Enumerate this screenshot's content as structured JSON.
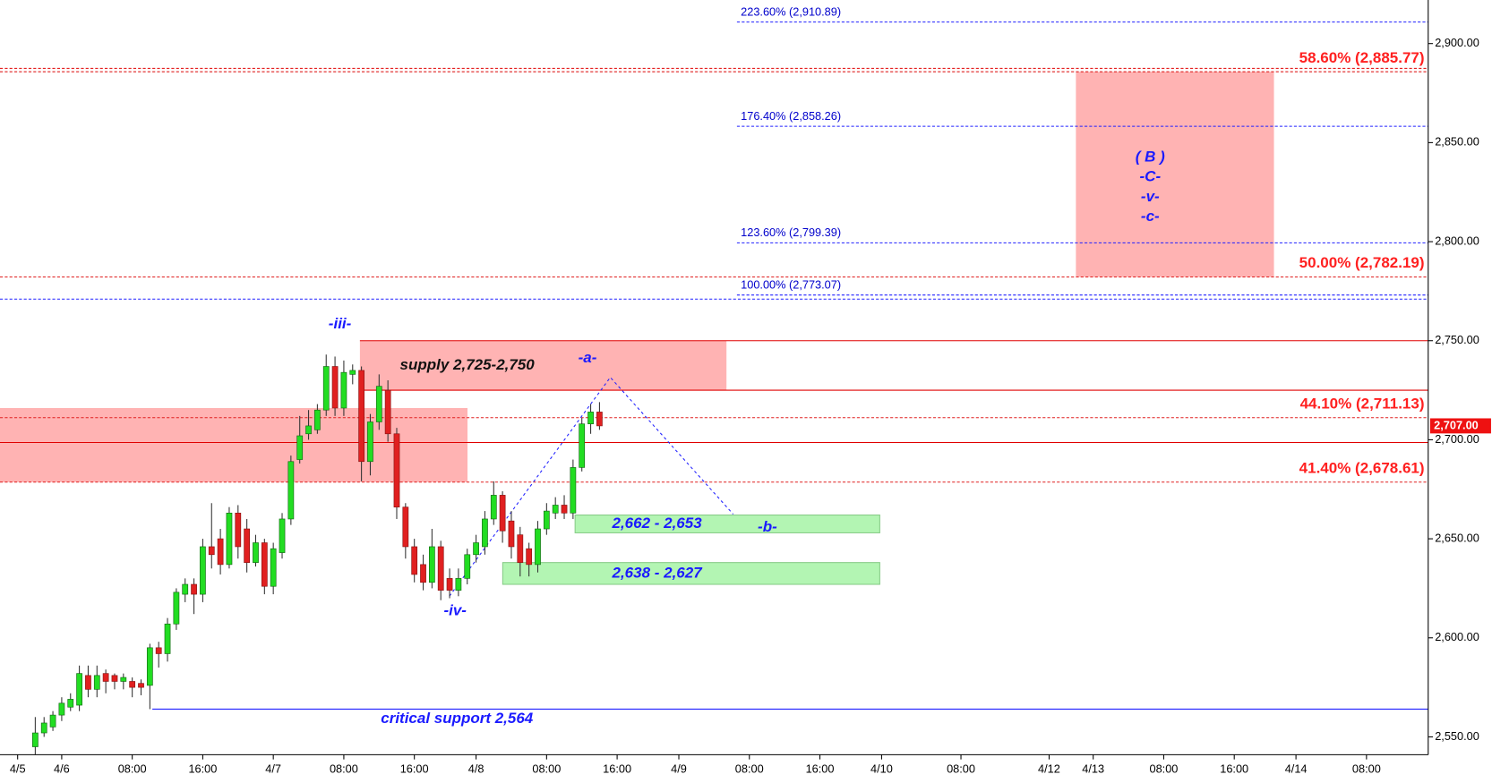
{
  "chart_data": {
    "type": "candlestick",
    "xlim": [
      -4,
      158
    ],
    "xticks": [
      {
        "value": -2,
        "label": "4/5"
      },
      {
        "value": 3,
        "label": "4/6"
      },
      {
        "value": 11,
        "label": "08:00"
      },
      {
        "value": 19,
        "label": "16:00"
      },
      {
        "value": 27,
        "label": "4/7"
      },
      {
        "value": 35,
        "label": "08:00"
      },
      {
        "value": 43,
        "label": "16:00"
      },
      {
        "value": 50,
        "label": "4/8"
      },
      {
        "value": 58,
        "label": "08:00"
      },
      {
        "value": 66,
        "label": "16:00"
      },
      {
        "value": 73,
        "label": "4/9"
      },
      {
        "value": 81,
        "label": "08:00"
      },
      {
        "value": 89,
        "label": "16:00"
      },
      {
        "value": 96,
        "label": "4/10"
      },
      {
        "value": 105,
        "label": "08:00"
      },
      {
        "value": 115,
        "label": "4/12"
      },
      {
        "value": 120,
        "label": "4/13"
      },
      {
        "value": 128,
        "label": "08:00"
      },
      {
        "value": 136,
        "label": "16:00"
      },
      {
        "value": 143,
        "label": "4/14"
      },
      {
        "value": 151,
        "label": "08:00"
      }
    ],
    "ylim": [
      2541,
      2922
    ],
    "yticks": [
      {
        "value": 2550,
        "label": "2,550.00"
      },
      {
        "value": 2600,
        "label": "2,600.00"
      },
      {
        "value": 2650,
        "label": "2,650.00"
      },
      {
        "value": 2700,
        "label": "2,700.00"
      },
      {
        "value": 2750,
        "label": "2,750.00"
      },
      {
        "value": 2800,
        "label": "2,800.00"
      },
      {
        "value": 2850,
        "label": "2,850.00"
      },
      {
        "value": 2900,
        "label": "2,900.00"
      }
    ],
    "up_color": "#22dd22",
    "down_color": "#e02020",
    "open": [
      2545,
      2552,
      2555,
      2561,
      2565,
      2566,
      2581,
      2574,
      2582,
      2581,
      2578,
      2578,
      2577,
      2576,
      2595,
      2592,
      2607,
      2622,
      2627,
      2622,
      2646,
      2650,
      2637,
      2663,
      2655,
      2638,
      2648,
      2626,
      2643,
      2660,
      2690,
      2703,
      2705,
      2715,
      2737,
      2716,
      2733,
      2735,
      2689,
      2709,
      2725,
      2703,
      2666,
      2646,
      2637,
      2628,
      2646,
      2630,
      2624,
      2630,
      2642,
      2646,
      2660,
      2672,
      2659,
      2652,
      2645,
      2637,
      2655,
      2663,
      2667,
      2663,
      2686,
      2708,
      2714
    ],
    "high": [
      2560,
      2560,
      2563,
      2570,
      2572,
      2586,
      2586,
      2586,
      2584,
      2582,
      2582,
      2580,
      2579,
      2597,
      2598,
      2610,
      2625,
      2630,
      2630,
      2650,
      2668,
      2655,
      2666,
      2667,
      2660,
      2652,
      2650,
      2648,
      2663,
      2692,
      2712,
      2715,
      2718,
      2743,
      2742,
      2740,
      2738,
      2737,
      2713,
      2733,
      2730,
      2706,
      2668,
      2650,
      2642,
      2655,
      2649,
      2635,
      2635,
      2645,
      2652,
      2664,
      2679,
      2674,
      2664,
      2656,
      2648,
      2659,
      2668,
      2671,
      2672,
      2690,
      2711,
      2718,
      2719
    ],
    "low": [
      2541,
      2550,
      2553,
      2558,
      2563,
      2563,
      2570,
      2570,
      2572,
      2574,
      2574,
      2570,
      2571,
      2564,
      2585,
      2588,
      2604,
      2618,
      2612,
      2618,
      2635,
      2632,
      2635,
      2640,
      2633,
      2636,
      2622,
      2622,
      2640,
      2657,
      2688,
      2700,
      2703,
      2712,
      2712,
      2712,
      2728,
      2679,
      2682,
      2705,
      2699,
      2660,
      2640,
      2628,
      2624,
      2625,
      2619,
      2620,
      2621,
      2627,
      2638,
      2642,
      2657,
      2648,
      2640,
      2631,
      2631,
      2633,
      2652,
      2660,
      2660,
      2660,
      2684,
      2703,
      2705
    ],
    "close": [
      2552,
      2557,
      2561,
      2567,
      2569,
      2582,
      2574,
      2581,
      2578,
      2578,
      2580,
      2575,
      2575,
      2595,
      2592,
      2607,
      2623,
      2627,
      2622,
      2646,
      2642,
      2637,
      2663,
      2646,
      2638,
      2648,
      2626,
      2645,
      2660,
      2689,
      2702,
      2707,
      2715,
      2737,
      2716,
      2734,
      2735,
      2689,
      2709,
      2727,
      2703,
      2666,
      2646,
      2632,
      2628,
      2646,
      2624,
      2624,
      2630,
      2642,
      2648,
      2660,
      2672,
      2654,
      2646,
      2638,
      2637,
      2655,
      2664,
      2667,
      2663,
      2686,
      2708,
      2714,
      2707
    ],
    "last_price": {
      "value": 2707,
      "label": "2,707.00"
    },
    "fib_levels": [
      {
        "label": "223.60% (2,910.89)",
        "value": 2910.89
      },
      {
        "label": "176.40% (2,858.26)",
        "value": 2858.26
      },
      {
        "label": "123.60% (2,799.39)",
        "value": 2799.39
      },
      {
        "label": "100.00% (2,773.07)",
        "value": 2773.07
      }
    ],
    "retracement_levels": [
      {
        "label": "58.60% (2,885.77)",
        "value": 2885.77
      },
      {
        "label": "50.00% (2,782.19)",
        "value": 2782.19
      },
      {
        "label": "44.10% (2,711.13)",
        "value": 2711.13
      },
      {
        "label": "41.40% (2,678.61)",
        "value": 2678.61
      }
    ],
    "lines": [
      {
        "value": 2750,
        "color": "#e00000"
      },
      {
        "value": 2725,
        "color": "#e00000"
      },
      {
        "value": 2698.6,
        "color": "#e00000"
      },
      {
        "value": 2564,
        "color": "#2020ff"
      },
      {
        "value": 2887.5,
        "color": "#e00000"
      },
      {
        "value": 2771,
        "color": "#2020ff"
      }
    ],
    "zones": [
      {
        "low": 2678.61,
        "high": 2716,
        "color": "#ffb3b3"
      },
      {
        "label": "supply 2,725-2,750",
        "low": 2725,
        "high": 2750,
        "color": "#ffb3b3"
      },
      {
        "low": 2782.19,
        "high": 2885.77,
        "color": "#ffb3b3"
      },
      {
        "label": "2,662 - 2,653",
        "low": 2653,
        "high": 2662,
        "color": "#b3f5b3"
      },
      {
        "label": "2,638 - 2,627",
        "low": 2627,
        "high": 2638,
        "color": "#b3f5b3"
      }
    ],
    "annotations": [
      "-iii-",
      "-a-",
      "-iv-",
      "-b-",
      "critical support 2,564",
      "( B )",
      "-C-",
      "-v-",
      "-c-"
    ]
  }
}
